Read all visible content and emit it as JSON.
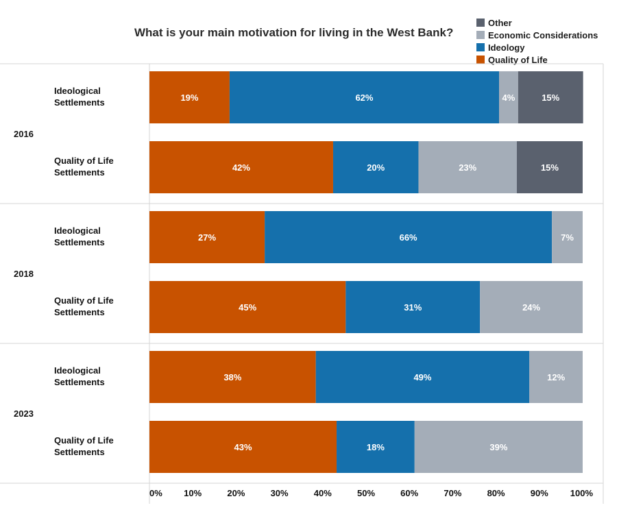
{
  "chart_data": {
    "type": "bar",
    "orientation": "horizontal",
    "stacked": true,
    "title": "What is your main motivation for living in the West Bank?",
    "legend_placement": "top-right",
    "xlim": [
      0,
      100
    ],
    "x_ticks": [
      "0%",
      "10%",
      "20%",
      "30%",
      "40%",
      "50%",
      "60%",
      "70%",
      "80%",
      "90%",
      "100%"
    ],
    "legend": [
      {
        "name": "Other",
        "color": "#5a616e"
      },
      {
        "name": "Economic Considerations",
        "color": "#a4adb8"
      },
      {
        "name": "Ideology",
        "color": "#1570ac"
      },
      {
        "name": "Quality of Life",
        "color": "#c85200"
      }
    ],
    "series_order": [
      "Quality of Life",
      "Ideology",
      "Economic Considerations",
      "Other"
    ],
    "groups": [
      {
        "year": "2016",
        "rows": [
          {
            "label_lines": [
              "Ideological",
              "Settlements"
            ],
            "values": [
              18.5,
              62.2,
              4.4,
              15.0
            ],
            "labels": [
              "19%",
              "62%",
              "4%",
              "15%"
            ]
          },
          {
            "label_lines": [
              "Quality of Life",
              "Settlements"
            ],
            "values": [
              42.4,
              19.7,
              22.7,
              15.2
            ],
            "labels": [
              "42%",
              "20%",
              "23%",
              "15%"
            ]
          }
        ]
      },
      {
        "year": "2018",
        "rows": [
          {
            "label_lines": [
              "Ideological",
              "Settlements"
            ],
            "values": [
              26.6,
              66.3,
              7.1,
              0
            ],
            "labels": [
              "27%",
              "66%",
              "7%",
              ""
            ]
          },
          {
            "label_lines": [
              "Quality of Life",
              "Settlements"
            ],
            "values": [
              45.3,
              31.0,
              23.7,
              0
            ],
            "labels": [
              "45%",
              "31%",
              "24%",
              ""
            ]
          }
        ]
      },
      {
        "year": "2023",
        "rows": [
          {
            "label_lines": [
              "Ideological",
              "Settlements"
            ],
            "values": [
              38.4,
              49.3,
              12.3,
              0
            ],
            "labels": [
              "38%",
              "49%",
              "12%",
              ""
            ]
          },
          {
            "label_lines": [
              "Quality of Life",
              "Settlements"
            ],
            "values": [
              43.2,
              18.0,
              38.8,
              0
            ],
            "labels": [
              "43%",
              "18%",
              "39%",
              ""
            ]
          }
        ]
      }
    ]
  }
}
